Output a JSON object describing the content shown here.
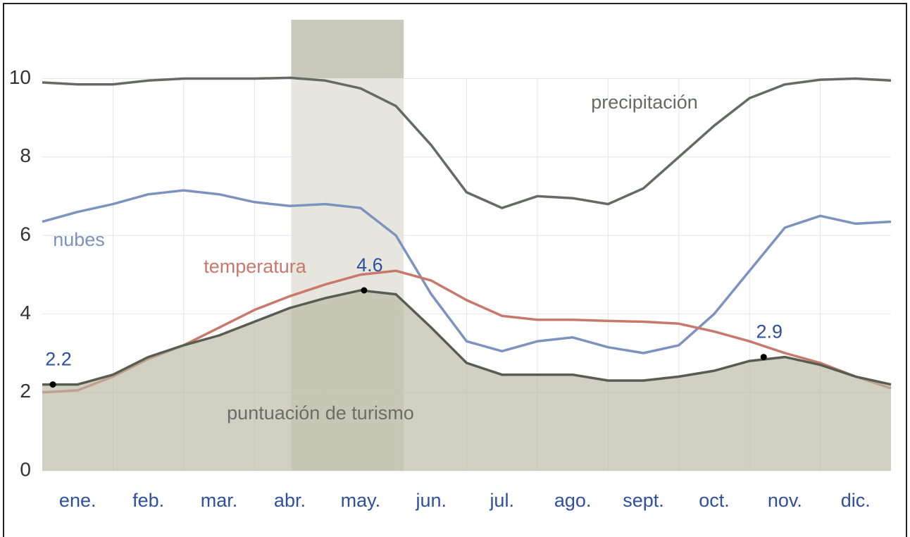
{
  "chart_data": {
    "type": "line",
    "categories": [
      "ene.",
      "feb.",
      "mar.",
      "abr.",
      "may.",
      "jun.",
      "jul.",
      "ago.",
      "sept.",
      "oct.",
      "nov.",
      "dic."
    ],
    "x": [
      0,
      0.5,
      1,
      1.5,
      2,
      2.5,
      3,
      3.5,
      4,
      4.5,
      5,
      5.5,
      6,
      6.5,
      7,
      7.5,
      8,
      8.5,
      9,
      9.5,
      10,
      10.5,
      11,
      11.5,
      12
    ],
    "xlim": [
      0,
      12
    ],
    "ylim": [
      0,
      11.5
    ],
    "yticks": [
      0,
      2,
      4,
      6,
      8,
      10
    ],
    "grid": true,
    "highlight": {
      "from": 3.52,
      "to": 5.11
    },
    "series": [
      {
        "name": "precipitación",
        "color": "#666a63",
        "values": [
          9.9,
          9.85,
          9.85,
          9.95,
          10,
          10,
          10,
          10.02,
          9.95,
          9.75,
          9.3,
          8.3,
          7.1,
          6.7,
          7.0,
          6.95,
          6.8,
          7.2,
          8.0,
          8.8,
          9.5,
          9.85,
          9.97,
          10,
          9.95
        ]
      },
      {
        "name": "nubes",
        "color": "#7d93bf",
        "values": [
          6.35,
          6.6,
          6.8,
          7.05,
          7.15,
          7.05,
          6.85,
          6.75,
          6.8,
          6.7,
          6.0,
          4.5,
          3.3,
          3.05,
          3.3,
          3.4,
          3.15,
          3.0,
          3.2,
          4.0,
          5.1,
          6.2,
          6.5,
          6.3,
          6.35
        ]
      },
      {
        "name": "temperatura",
        "color": "#c8796c",
        "values": [
          2.0,
          2.05,
          2.4,
          2.85,
          3.2,
          3.65,
          4.1,
          4.45,
          4.75,
          5.0,
          5.1,
          4.85,
          4.35,
          3.95,
          3.85,
          3.85,
          3.82,
          3.8,
          3.75,
          3.55,
          3.3,
          3.0,
          2.75,
          2.4,
          2.1
        ]
      },
      {
        "name": "puntuación de turismo",
        "color": "#585d52",
        "area": true,
        "values": [
          2.2,
          2.2,
          2.45,
          2.9,
          3.2,
          3.45,
          3.8,
          4.15,
          4.4,
          4.6,
          4.5,
          3.65,
          2.75,
          2.45,
          2.45,
          2.45,
          2.3,
          2.3,
          2.4,
          2.55,
          2.8,
          2.9,
          2.7,
          2.4,
          2.2
        ]
      }
    ],
    "annotations": [
      {
        "x": 0.15,
        "value": 2.2
      },
      {
        "x": 4.55,
        "value": 4.6
      },
      {
        "x": 10.2,
        "value": 2.9
      }
    ]
  }
}
